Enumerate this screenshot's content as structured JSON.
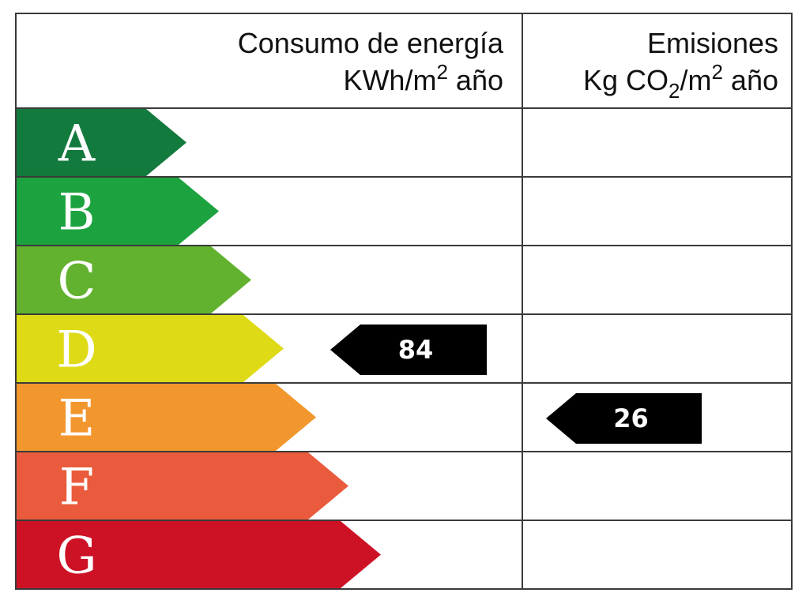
{
  "header": {
    "consumo_title": "Consumo de energía",
    "consumo_unit_pre": "KWh/m",
    "consumo_unit_sup": "2",
    "consumo_unit_post": " año",
    "emisiones_title": "Emisiones",
    "emisiones_unit_pre": "Kg CO",
    "emisiones_unit_sub": "2",
    "emisiones_unit_mid": "/m",
    "emisiones_unit_sup": "2",
    "emisiones_unit_post": " año"
  },
  "ratings": [
    {
      "letter": "A",
      "color": "#137a3d"
    },
    {
      "letter": "B",
      "color": "#1ca33f"
    },
    {
      "letter": "C",
      "color": "#63b22f"
    },
    {
      "letter": "D",
      "color": "#dedb16"
    },
    {
      "letter": "E",
      "color": "#f2972e"
    },
    {
      "letter": "F",
      "color": "#e95b3c"
    },
    {
      "letter": "G",
      "color": "#cd1226"
    }
  ],
  "consumo": {
    "value": "84",
    "rating": "D"
  },
  "emisiones": {
    "value": "26",
    "rating": "E"
  }
}
